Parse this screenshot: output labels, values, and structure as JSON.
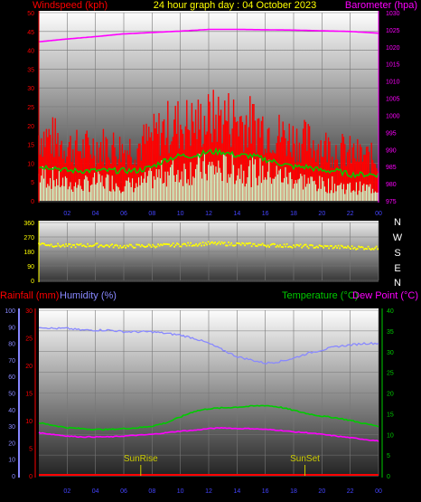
{
  "header": {
    "title": "24 hour graph day : 04 October 2023",
    "wind_label": "Windspeed (kph)",
    "baro_label": "Barometer (hpa)"
  },
  "lower_header": {
    "rain_label": "Rainfall (mm)",
    "humidity_label": "Humidity (%)",
    "temp_label": "Temperature (°C)",
    "dew_label": "Dew Point (°C)"
  },
  "markers": {
    "sunrise": "SunRise",
    "sunset": "SunSet"
  },
  "compass": [
    "N",
    "W",
    "S",
    "E",
    "N"
  ],
  "colors": {
    "wind": "#ff0000",
    "gust": "#ff0000",
    "avg_wind": "#00cc00",
    "wind_dir": "#ffff00",
    "baro": "#ff00ff",
    "temp": "#00cc00",
    "dew": "#ff00ff",
    "humidity": "#8888ff",
    "rain": "#ff0000",
    "title": "#ffff00",
    "sun_marker": "#cccc00"
  },
  "chart_data": [
    {
      "type": "line",
      "title": "24 hour graph day : 04 October 2023",
      "x_ticks": [
        "02",
        "04",
        "06",
        "08",
        "10",
        "12",
        "14",
        "16",
        "18",
        "20",
        "22",
        "00"
      ],
      "y_left_label": "Windspeed (kph)",
      "y_left_ticks": [
        0,
        5,
        10,
        15,
        20,
        25,
        30,
        35,
        40,
        45,
        50
      ],
      "y_right_label": "Barometer (hpa)",
      "y_right_ticks": [
        975,
        980,
        985,
        990,
        995,
        1000,
        1005,
        1010,
        1015,
        1020,
        1025,
        1030
      ],
      "series": [
        {
          "axis": "left",
          "style": "bars",
          "x": [
            0,
            1,
            2,
            3,
            4,
            5,
            6,
            7,
            8,
            9,
            10,
            11,
            12,
            13,
            14,
            15,
            16,
            17,
            18,
            19,
            20,
            21,
            22,
            23,
            24
          ],
          "values": [
            18,
            17,
            15,
            14,
            15,
            15,
            14,
            15,
            17,
            20,
            21,
            21,
            22,
            23,
            22,
            21,
            20,
            18,
            17,
            16,
            15,
            14,
            13,
            12,
            11
          ]
        },
        {
          "axis": "left",
          "style": "bars",
          "x": [
            0,
            1,
            2,
            3,
            4,
            5,
            6,
            7,
            8,
            9,
            10,
            11,
            12,
            13,
            14,
            15,
            16,
            17,
            18,
            19,
            20,
            21,
            22,
            23,
            24
          ],
          "values": [
            8,
            7,
            5,
            5,
            6,
            6,
            5,
            5,
            7,
            9,
            9,
            10,
            10,
            10,
            10,
            9,
            9,
            8,
            7,
            6,
            5,
            5,
            4,
            4,
            4
          ]
        },
        {
          "axis": "left",
          "style": "line",
          "x": [
            0,
            1,
            2,
            3,
            4,
            5,
            6,
            7,
            8,
            9,
            10,
            11,
            12,
            13,
            14,
            15,
            16,
            17,
            18,
            19,
            20,
            21,
            22,
            23,
            24
          ],
          "values": [
            9,
            9,
            8,
            8,
            8,
            8,
            8,
            8,
            9,
            11,
            12,
            12,
            13,
            13,
            12,
            12,
            11,
            10,
            9,
            9,
            8,
            8,
            7,
            7,
            7
          ]
        },
        {
          "axis": "right",
          "style": "line",
          "x": [
            0,
            2,
            4,
            6,
            8,
            10,
            12,
            14,
            16,
            18,
            20,
            22,
            24
          ],
          "values": [
            1021.5,
            1022.3,
            1023.0,
            1023.8,
            1024.2,
            1024.6,
            1025.1,
            1025.1,
            1025.0,
            1024.9,
            1024.7,
            1024.5,
            1024.0
          ]
        }
      ]
    },
    {
      "type": "scatter",
      "x_ticks": [],
      "y_ticks": [
        0,
        90,
        180,
        270,
        360
      ],
      "series": [
        {
          "x": [
            0,
            1,
            2,
            3,
            4,
            5,
            6,
            7,
            8,
            9,
            10,
            11,
            12,
            13,
            14,
            15,
            16,
            17,
            18,
            19,
            20,
            21,
            22,
            23,
            24
          ],
          "values": [
            230,
            220,
            215,
            218,
            220,
            216,
            212,
            214,
            216,
            218,
            222,
            225,
            230,
            228,
            226,
            222,
            220,
            218,
            215,
            212,
            210,
            208,
            205,
            204,
            200
          ]
        }
      ]
    },
    {
      "type": "line",
      "x_ticks": [
        "02",
        "04",
        "06",
        "08",
        "10",
        "12",
        "14",
        "16",
        "18",
        "20",
        "22",
        "00"
      ],
      "y_left_label": "Rainfall (mm)",
      "y_left_ticks": [
        0,
        5,
        10,
        15,
        20,
        25,
        30
      ],
      "y_humidity_label": "Humidity (%)",
      "y_humidity_ticks": [
        0,
        10,
        20,
        30,
        40,
        50,
        60,
        70,
        80,
        90,
        100
      ],
      "y_right_label": "Temperature (°C)",
      "y_right_ticks": [
        0,
        5,
        10,
        15,
        20,
        25,
        30,
        35,
        40
      ],
      "series": [
        {
          "name": "Humidity (%)",
          "axis": "humidity",
          "x": [
            0,
            1,
            2,
            3,
            4,
            5,
            6,
            7,
            8,
            9,
            10,
            11,
            12,
            13,
            14,
            15,
            16,
            17,
            18,
            19,
            20,
            21,
            22,
            23,
            24
          ],
          "values": [
            90,
            89,
            89,
            88,
            88,
            88,
            87,
            87,
            87,
            86,
            85,
            83,
            80,
            76,
            72,
            70,
            68,
            69,
            71,
            74,
            76,
            78,
            79,
            80,
            80
          ]
        },
        {
          "name": "Temperature (°C)",
          "axis": "right",
          "x": [
            0,
            1,
            2,
            3,
            4,
            5,
            6,
            7,
            8,
            9,
            10,
            11,
            12,
            13,
            14,
            15,
            16,
            17,
            18,
            19,
            20,
            21,
            22,
            23,
            24
          ],
          "values": [
            12.8,
            12.2,
            11.6,
            11.4,
            11.2,
            11.2,
            11.4,
            11.6,
            12.0,
            12.8,
            14.2,
            15.6,
            16.2,
            16.4,
            16.6,
            16.8,
            17.0,
            16.6,
            15.8,
            15.0,
            14.4,
            14.0,
            13.4,
            12.6,
            12.0
          ]
        },
        {
          "name": "Dew Point (°C)",
          "axis": "right",
          "x": [
            0,
            1,
            2,
            3,
            4,
            5,
            6,
            7,
            8,
            9,
            10,
            11,
            12,
            13,
            14,
            15,
            16,
            17,
            18,
            19,
            20,
            21,
            22,
            23,
            24
          ],
          "values": [
            10.4,
            10.0,
            9.6,
            9.4,
            9.4,
            9.4,
            9.6,
            9.8,
            10.0,
            10.4,
            10.8,
            11.0,
            11.4,
            11.6,
            11.4,
            11.4,
            11.2,
            11.0,
            10.6,
            10.4,
            10.0,
            9.6,
            9.2,
            8.8,
            8.4
          ]
        },
        {
          "name": "Rainfall (mm)",
          "axis": "left",
          "x": [
            0,
            24
          ],
          "values": [
            0,
            0
          ]
        }
      ],
      "sunrise_hour": 7.2,
      "sunset_hour": 18.8
    }
  ]
}
